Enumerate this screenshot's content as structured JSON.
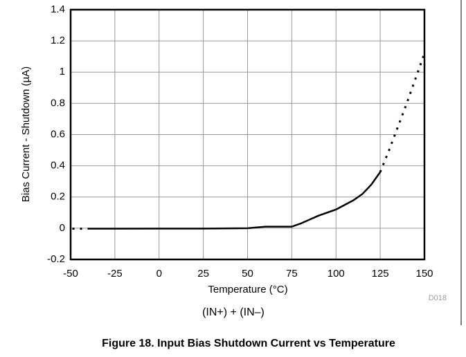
{
  "chart_data": {
    "type": "line",
    "x_label": "Temperature (°C)",
    "y_label": "Bias Current - Shutdown (µA)",
    "code": "D018",
    "subtitle": "(IN+) + (IN–)",
    "caption": "Figure 18. Input Bias Shutdown Current vs Temperature",
    "x": [
      -49,
      -40,
      -25,
      0,
      25,
      50,
      60,
      75,
      80,
      90,
      100,
      110,
      115,
      120,
      125,
      130,
      140,
      150
    ],
    "series": [
      {
        "color": "#000000",
        "dashed": false,
        "values": [
          null,
          -0.003,
          -0.003,
          -0.002,
          -0.002,
          0.0,
          0.01,
          0.01,
          0.03,
          0.08,
          0.12,
          0.18,
          0.22,
          0.28,
          0.36,
          null,
          null,
          null
        ]
      },
      {
        "color": "#000000",
        "dashed": true,
        "values": [
          -0.003,
          -0.003,
          null,
          null,
          null,
          null,
          null,
          null,
          null,
          null,
          null,
          null,
          null,
          null,
          0.36,
          0.5,
          0.8,
          1.12
        ]
      }
    ],
    "xlim": [
      -50,
      150
    ],
    "xticks": [
      -50,
      -25,
      0,
      25,
      50,
      75,
      100,
      125,
      150
    ],
    "ylim": [
      -0.2,
      1.4
    ],
    "yticks": [
      -0.2,
      0,
      0.2,
      0.4,
      0.6,
      0.8,
      1,
      1.2,
      1.4
    ],
    "grid": true
  }
}
